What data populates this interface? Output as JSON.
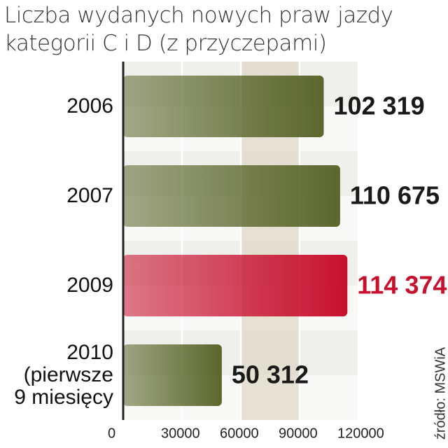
{
  "chart_data": {
    "type": "hbar",
    "title": "Liczba wydanych nowych praw jazdy\nkategorii C i D (z przyczepami)",
    "categories": [
      "2006",
      "2007",
      "2009",
      "2010\n(pierwsze\n9 miesięcy"
    ],
    "values": [
      102319,
      110675,
      114374,
      50312
    ],
    "value_labels": [
      "102 319",
      "110 675",
      "114 374",
      "50 312"
    ],
    "colors": [
      "#5b672c",
      "#5b672c",
      "#c8102e",
      "#5b672c"
    ],
    "value_label_colors": [
      "#1a1a1a",
      "#1a1a1a",
      "#c8102e",
      "#1a1a1a"
    ],
    "xlim": [
      0,
      120000
    ],
    "xticks": [
      0,
      30000,
      60000,
      90000,
      120000
    ],
    "grid": true,
    "source": "źródło: MSWiA"
  }
}
